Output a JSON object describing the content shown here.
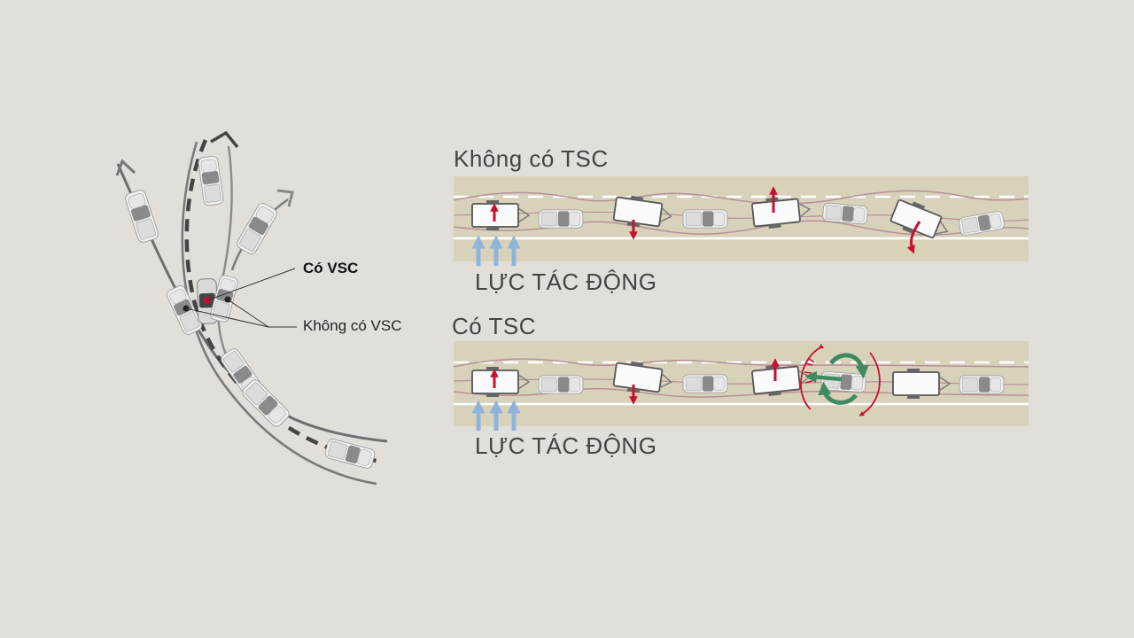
{
  "colors": {
    "background": "#e2dfdb",
    "road": "#d8d2ba",
    "trajectory": "#b98f99",
    "force_arrow": "#8fb4dc",
    "red_arrow": "#c8102e",
    "green_arrow": "#3f8a5f",
    "curve_gray": "#666666"
  },
  "left_diagram": {
    "label_with_vsc": "Có VSC",
    "label_without_vsc": "Không có VSC"
  },
  "panels": [
    {
      "title": "Không có TSC",
      "force_label": "LỰC TÁC ĐỘNG"
    },
    {
      "title": "Có TSC",
      "force_label": "LỰC TÁC ĐỘNG"
    }
  ]
}
